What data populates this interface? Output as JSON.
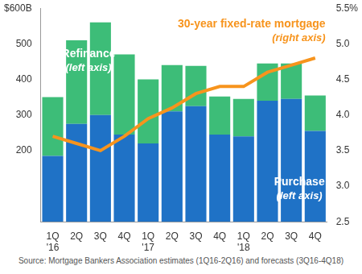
{
  "chart_data": {
    "type": "bar",
    "categories": [
      "1Q '16",
      "2Q",
      "3Q",
      "4Q",
      "1Q '17",
      "2Q",
      "3Q",
      "4Q",
      "1Q '18",
      "2Q",
      "3Q",
      "4Q"
    ],
    "series": [
      {
        "name": "Purchase",
        "color": "#1f72c6",
        "values": [
          185,
          275,
          300,
          245,
          220,
          310,
          325,
          245,
          240,
          340,
          345,
          255
        ]
      },
      {
        "name": "Refinance",
        "color": "#3dbd78",
        "values": [
          165,
          235,
          260,
          225,
          180,
          130,
          113,
          107,
          105,
          105,
          100,
          100
        ]
      },
      {
        "name": "30-year fixed-rate mortgage",
        "type": "line",
        "axis": "y2",
        "color": "#f7941d",
        "marker": "none",
        "values": [
          3.7,
          3.6,
          3.5,
          3.7,
          3.95,
          4.1,
          4.3,
          4.4,
          4.4,
          4.6,
          4.7,
          4.8
        ]
      }
    ],
    "annotations": [
      {
        "series": "Refinance",
        "text": "(left axis)"
      },
      {
        "series": "Purchase",
        "text": "(left axis)"
      },
      {
        "series": "30-year fixed-rate mortgage",
        "text": "(right axis)"
      }
    ],
    "source": "Source: Mortgage Bankers Association estimates (1Q16-2Q16) and forecasts (3Q16-4Q18)",
    "stacked": true,
    "grid": false,
    "ylim": [
      0,
      600
    ],
    "yticks": [
      200,
      300,
      400,
      500,
      {
        "value": 600,
        "label": "$600B"
      }
    ],
    "y2lim": [
      2.5,
      5.5
    ],
    "y2ticks": [
      2.5,
      {
        "value": 3,
        "label": "3.0"
      },
      3.5,
      {
        "value": 4,
        "label": "4.0"
      },
      4.5,
      {
        "value": 5,
        "label": "5.0"
      },
      {
        "value": 5.5,
        "label": "5.5%"
      }
    ]
  }
}
